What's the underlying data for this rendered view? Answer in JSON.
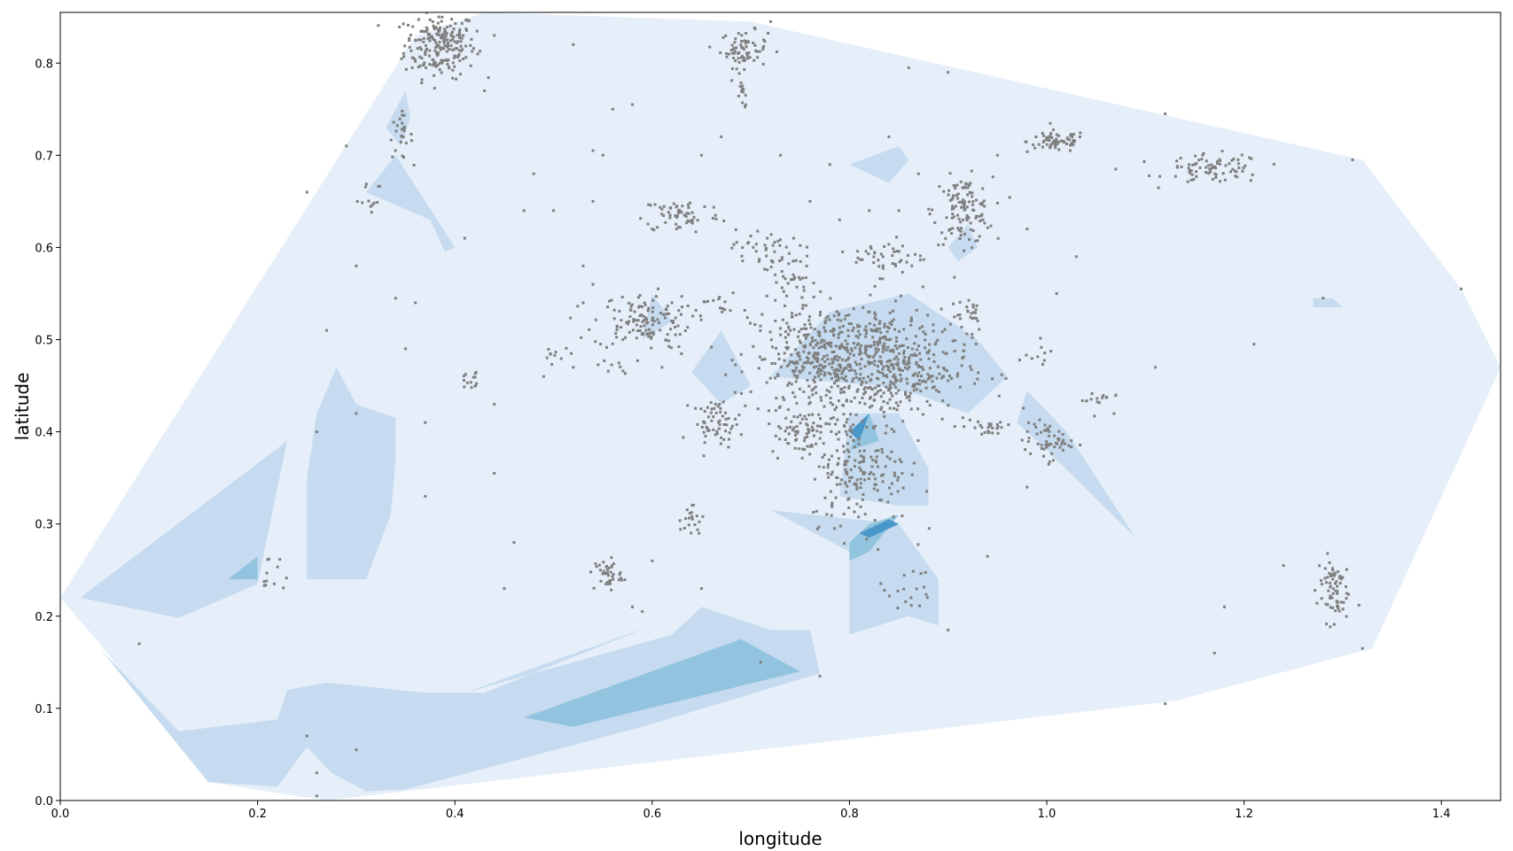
{
  "chart_data": {
    "type": "scatter",
    "subtype": "filled-contour-density-with-scatter",
    "title": "",
    "xlabel": "longitude",
    "ylabel": "latitude",
    "xlim": [
      0.0,
      1.46
    ],
    "ylim": [
      0.0,
      0.855
    ],
    "xticks": [
      0.0,
      0.2,
      0.4,
      0.6,
      0.8,
      1.0,
      1.2,
      1.4
    ],
    "xtick_labels": [
      "0.0",
      "0.2",
      "0.4",
      "0.6",
      "0.8",
      "1.0",
      "1.2",
      "1.4"
    ],
    "yticks": [
      0.0,
      0.1,
      0.2,
      0.3,
      0.4,
      0.5,
      0.6,
      0.7,
      0.8
    ],
    "ytick_labels": [
      "0.0",
      "0.1",
      "0.2",
      "0.3",
      "0.4",
      "0.5",
      "0.6",
      "0.7",
      "0.8"
    ],
    "grid": false,
    "legend": "none",
    "colors": {
      "level1": "#e6eff9",
      "level2": "#c6dbef",
      "level3": "#93c4df",
      "level4": "#4a98c9",
      "level5": "#2171b5",
      "points": "#7f7f7f"
    },
    "contours": [
      {
        "level": 1,
        "polygon": [
          [
            0.0,
            0.22
          ],
          [
            0.36,
            0.83
          ],
          [
            0.43,
            0.855
          ],
          [
            0.7,
            0.845
          ],
          [
            1.32,
            0.695
          ],
          [
            1.42,
            0.555
          ],
          [
            1.46,
            0.47
          ],
          [
            1.33,
            0.165
          ],
          [
            1.13,
            0.108
          ],
          [
            0.27,
            0.0
          ],
          [
            0.15,
            0.02
          ],
          [
            0.04,
            0.17
          ]
        ]
      },
      {
        "level": 2,
        "polygon": [
          [
            0.02,
            0.22
          ],
          [
            0.23,
            0.39
          ],
          [
            0.2,
            0.235
          ],
          [
            0.12,
            0.198
          ]
        ]
      },
      {
        "level": 2,
        "polygon": [
          [
            0.25,
            0.24
          ],
          [
            0.25,
            0.35
          ],
          [
            0.26,
            0.42
          ],
          [
            0.28,
            0.47
          ],
          [
            0.3,
            0.43
          ],
          [
            0.34,
            0.415
          ],
          [
            0.34,
            0.37
          ],
          [
            0.335,
            0.31
          ],
          [
            0.31,
            0.24
          ]
        ]
      },
      {
        "level": 2,
        "polygon": [
          [
            0.04,
            0.165
          ],
          [
            0.12,
            0.075
          ],
          [
            0.22,
            0.088
          ],
          [
            0.23,
            0.12
          ],
          [
            0.27,
            0.128
          ],
          [
            0.37,
            0.117
          ],
          [
            0.43,
            0.117
          ],
          [
            0.6,
            0.19
          ],
          [
            0.41,
            0.117
          ],
          [
            0.62,
            0.18
          ],
          [
            0.65,
            0.21
          ],
          [
            0.72,
            0.185
          ],
          [
            0.76,
            0.185
          ],
          [
            0.77,
            0.138
          ],
          [
            0.59,
            0.08
          ],
          [
            0.35,
            0.012
          ],
          [
            0.31,
            0.01
          ],
          [
            0.275,
            0.03
          ],
          [
            0.25,
            0.058
          ],
          [
            0.22,
            0.015
          ],
          [
            0.15,
            0.02
          ]
        ]
      },
      {
        "level": 2,
        "polygon": [
          [
            0.33,
            0.73
          ],
          [
            0.35,
            0.77
          ],
          [
            0.355,
            0.74
          ],
          [
            0.345,
            0.71
          ]
        ]
      },
      {
        "level": 2,
        "polygon": [
          [
            0.31,
            0.66
          ],
          [
            0.34,
            0.7
          ],
          [
            0.4,
            0.6
          ],
          [
            0.39,
            0.595
          ],
          [
            0.375,
            0.63
          ]
        ]
      },
      {
        "level": 2,
        "polygon": [
          [
            0.8,
            0.69
          ],
          [
            0.85,
            0.71
          ],
          [
            0.86,
            0.695
          ],
          [
            0.84,
            0.67
          ]
        ]
      },
      {
        "level": 2,
        "polygon": [
          [
            0.64,
            0.465
          ],
          [
            0.67,
            0.51
          ],
          [
            0.7,
            0.45
          ],
          [
            0.67,
            0.43
          ]
        ]
      },
      {
        "level": 2,
        "polygon": [
          [
            0.59,
            0.5
          ],
          [
            0.6,
            0.55
          ],
          [
            0.62,
            0.52
          ]
        ]
      },
      {
        "level": 2,
        "polygon": [
          [
            0.72,
            0.46
          ],
          [
            0.78,
            0.53
          ],
          [
            0.86,
            0.55
          ],
          [
            0.93,
            0.5
          ],
          [
            0.96,
            0.46
          ],
          [
            0.92,
            0.42
          ],
          [
            0.87,
            0.44
          ],
          [
            0.83,
            0.45
          ]
        ]
      },
      {
        "level": 2,
        "polygon": [
          [
            0.79,
            0.33
          ],
          [
            0.8,
            0.42
          ],
          [
            0.85,
            0.42
          ],
          [
            0.88,
            0.36
          ],
          [
            0.88,
            0.32
          ],
          [
            0.85,
            0.32
          ]
        ]
      },
      {
        "level": 2,
        "polygon": [
          [
            0.72,
            0.315
          ],
          [
            0.8,
            0.27
          ],
          [
            0.8,
            0.18
          ],
          [
            0.86,
            0.2
          ],
          [
            0.89,
            0.19
          ],
          [
            0.89,
            0.24
          ],
          [
            0.85,
            0.3
          ]
        ]
      },
      {
        "level": 2,
        "polygon": [
          [
            0.97,
            0.41
          ],
          [
            1.0,
            0.38
          ],
          [
            1.09,
            0.285
          ],
          [
            1.02,
            0.4
          ],
          [
            0.98,
            0.445
          ]
        ]
      },
      {
        "level": 2,
        "polygon": [
          [
            1.27,
            0.545
          ],
          [
            1.29,
            0.545
          ],
          [
            1.3,
            0.535
          ],
          [
            1.27,
            0.535
          ]
        ]
      },
      {
        "level": 2,
        "polygon": [
          [
            0.9,
            0.6
          ],
          [
            0.92,
            0.625
          ],
          [
            0.93,
            0.6
          ],
          [
            0.91,
            0.585
          ]
        ]
      },
      {
        "level": 3,
        "polygon": [
          [
            0.47,
            0.09
          ],
          [
            0.52,
            0.08
          ],
          [
            0.75,
            0.14
          ],
          [
            0.69,
            0.175
          ]
        ]
      },
      {
        "level": 3,
        "polygon": [
          [
            0.17,
            0.24
          ],
          [
            0.2,
            0.265
          ],
          [
            0.2,
            0.24
          ]
        ]
      },
      {
        "level": 3,
        "polygon": [
          [
            0.8,
            0.38
          ],
          [
            0.82,
            0.42
          ],
          [
            0.83,
            0.39
          ]
        ]
      },
      {
        "level": 3,
        "polygon": [
          [
            0.8,
            0.28
          ],
          [
            0.82,
            0.3
          ],
          [
            0.85,
            0.31
          ],
          [
            0.82,
            0.27
          ],
          [
            0.8,
            0.26
          ]
        ]
      },
      {
        "level": 4,
        "polygon": [
          [
            0.81,
            0.29
          ],
          [
            0.84,
            0.305
          ],
          [
            0.85,
            0.3
          ],
          [
            0.82,
            0.285
          ]
        ]
      },
      {
        "level": 4,
        "polygon": [
          [
            0.8,
            0.4
          ],
          [
            0.82,
            0.42
          ],
          [
            0.81,
            0.39
          ]
        ]
      }
    ],
    "point_clusters": [
      {
        "x": 0.385,
        "y": 0.82,
        "sx": 0.018,
        "sy": 0.018,
        "n": 220
      },
      {
        "x": 0.693,
        "y": 0.815,
        "sx": 0.012,
        "sy": 0.01,
        "n": 70
      },
      {
        "x": 0.692,
        "y": 0.765,
        "sx": 0.003,
        "sy": 0.007,
        "n": 12
      },
      {
        "x": 0.345,
        "y": 0.72,
        "sx": 0.006,
        "sy": 0.012,
        "n": 25
      },
      {
        "x": 1.01,
        "y": 0.715,
        "sx": 0.015,
        "sy": 0.006,
        "n": 70
      },
      {
        "x": 1.17,
        "y": 0.685,
        "sx": 0.025,
        "sy": 0.008,
        "n": 80
      },
      {
        "x": 0.915,
        "y": 0.64,
        "sx": 0.015,
        "sy": 0.018,
        "n": 120
      },
      {
        "x": 0.63,
        "y": 0.635,
        "sx": 0.02,
        "sy": 0.01,
        "n": 60
      },
      {
        "x": 0.59,
        "y": 0.52,
        "sx": 0.025,
        "sy": 0.015,
        "n": 130
      },
      {
        "x": 0.71,
        "y": 0.6,
        "sx": 0.015,
        "sy": 0.01,
        "n": 35
      },
      {
        "x": 0.74,
        "y": 0.57,
        "sx": 0.012,
        "sy": 0.015,
        "n": 35
      },
      {
        "x": 0.78,
        "y": 0.48,
        "sx": 0.04,
        "sy": 0.03,
        "n": 420
      },
      {
        "x": 0.84,
        "y": 0.47,
        "sx": 0.04,
        "sy": 0.03,
        "n": 380
      },
      {
        "x": 0.84,
        "y": 0.59,
        "sx": 0.018,
        "sy": 0.01,
        "n": 45
      },
      {
        "x": 0.92,
        "y": 0.53,
        "sx": 0.01,
        "sy": 0.01,
        "n": 20
      },
      {
        "x": 0.81,
        "y": 0.36,
        "sx": 0.025,
        "sy": 0.03,
        "n": 180
      },
      {
        "x": 0.75,
        "y": 0.4,
        "sx": 0.015,
        "sy": 0.012,
        "n": 60
      },
      {
        "x": 0.665,
        "y": 0.41,
        "sx": 0.012,
        "sy": 0.012,
        "n": 60
      },
      {
        "x": 0.64,
        "y": 0.305,
        "sx": 0.006,
        "sy": 0.01,
        "n": 20
      },
      {
        "x": 0.555,
        "y": 0.245,
        "sx": 0.007,
        "sy": 0.009,
        "n": 40
      },
      {
        "x": 0.215,
        "y": 0.245,
        "sx": 0.008,
        "sy": 0.01,
        "n": 12
      },
      {
        "x": 1.0,
        "y": 0.39,
        "sx": 0.012,
        "sy": 0.01,
        "n": 55
      },
      {
        "x": 0.94,
        "y": 0.405,
        "sx": 0.012,
        "sy": 0.006,
        "n": 25
      },
      {
        "x": 1.05,
        "y": 0.435,
        "sx": 0.008,
        "sy": 0.006,
        "n": 15
      },
      {
        "x": 1.29,
        "y": 0.23,
        "sx": 0.008,
        "sy": 0.018,
        "n": 70
      },
      {
        "x": 0.415,
        "y": 0.455,
        "sx": 0.008,
        "sy": 0.008,
        "n": 14
      },
      {
        "x": 0.99,
        "y": 0.48,
        "sx": 0.01,
        "sy": 0.006,
        "n": 10
      },
      {
        "x": 0.31,
        "y": 0.66,
        "sx": 0.008,
        "sy": 0.012,
        "n": 12
      },
      {
        "x": 0.56,
        "y": 0.47,
        "sx": 0.008,
        "sy": 0.004,
        "n": 8
      },
      {
        "x": 0.5,
        "y": 0.475,
        "sx": 0.012,
        "sy": 0.008,
        "n": 10
      },
      {
        "x": 0.67,
        "y": 0.54,
        "sx": 0.01,
        "sy": 0.01,
        "n": 14
      },
      {
        "x": 0.86,
        "y": 0.23,
        "sx": 0.015,
        "sy": 0.02,
        "n": 20
      }
    ],
    "scattered_points": [
      [
        0.25,
        0.66
      ],
      [
        0.3,
        0.58
      ],
      [
        0.29,
        0.71
      ],
      [
        0.35,
        0.49
      ],
      [
        0.27,
        0.51
      ],
      [
        0.26,
        0.4
      ],
      [
        0.3,
        0.42
      ],
      [
        0.37,
        0.33
      ],
      [
        0.44,
        0.355
      ],
      [
        0.46,
        0.28
      ],
      [
        0.45,
        0.23
      ],
      [
        0.58,
        0.21
      ],
      [
        0.59,
        0.205
      ],
      [
        0.6,
        0.26
      ],
      [
        0.65,
        0.23
      ],
      [
        0.08,
        0.17
      ],
      [
        0.25,
        0.07
      ],
      [
        0.26,
        0.03
      ],
      [
        0.3,
        0.055
      ],
      [
        0.26,
        0.005
      ],
      [
        0.71,
        0.15
      ],
      [
        0.77,
        0.135
      ],
      [
        0.9,
        0.185
      ],
      [
        0.94,
        0.265
      ],
      [
        1.12,
        0.105
      ],
      [
        1.17,
        0.16
      ],
      [
        1.18,
        0.21
      ],
      [
        1.32,
        0.165
      ],
      [
        1.24,
        0.255
      ],
      [
        1.42,
        0.555
      ],
      [
        1.28,
        0.545
      ],
      [
        1.21,
        0.495
      ],
      [
        1.31,
        0.695
      ],
      [
        1.12,
        0.745
      ],
      [
        1.07,
        0.685
      ],
      [
        0.98,
        0.62
      ],
      [
        0.95,
        0.7
      ],
      [
        0.9,
        0.79
      ],
      [
        0.86,
        0.795
      ],
      [
        0.84,
        0.72
      ],
      [
        0.72,
        0.845
      ],
      [
        0.52,
        0.82
      ],
      [
        0.44,
        0.83
      ],
      [
        0.43,
        0.77
      ],
      [
        0.56,
        0.75
      ],
      [
        0.58,
        0.755
      ],
      [
        0.54,
        0.705
      ],
      [
        0.55,
        0.7
      ],
      [
        0.48,
        0.68
      ],
      [
        0.54,
        0.65
      ],
      [
        0.5,
        0.64
      ],
      [
        0.47,
        0.64
      ],
      [
        0.53,
        0.58
      ],
      [
        0.41,
        0.61
      ],
      [
        0.53,
        0.54
      ],
      [
        0.54,
        0.56
      ],
      [
        0.34,
        0.545
      ],
      [
        0.36,
        0.54
      ],
      [
        0.37,
        0.41
      ],
      [
        0.44,
        0.43
      ],
      [
        1.11,
        0.47
      ],
      [
        1.01,
        0.55
      ],
      [
        1.03,
        0.59
      ],
      [
        1.07,
        0.44
      ],
      [
        0.98,
        0.34
      ],
      [
        0.73,
        0.7
      ],
      [
        0.76,
        0.65
      ],
      [
        0.78,
        0.69
      ],
      [
        0.79,
        0.63
      ],
      [
        0.82,
        0.64
      ],
      [
        0.85,
        0.64
      ],
      [
        0.87,
        0.68
      ],
      [
        0.67,
        0.72
      ],
      [
        0.65,
        0.7
      ],
      [
        0.6,
        0.62
      ],
      [
        0.62,
        0.54
      ],
      [
        0.61,
        0.47
      ],
      [
        0.49,
        0.46
      ],
      [
        0.52,
        0.47
      ]
    ]
  }
}
